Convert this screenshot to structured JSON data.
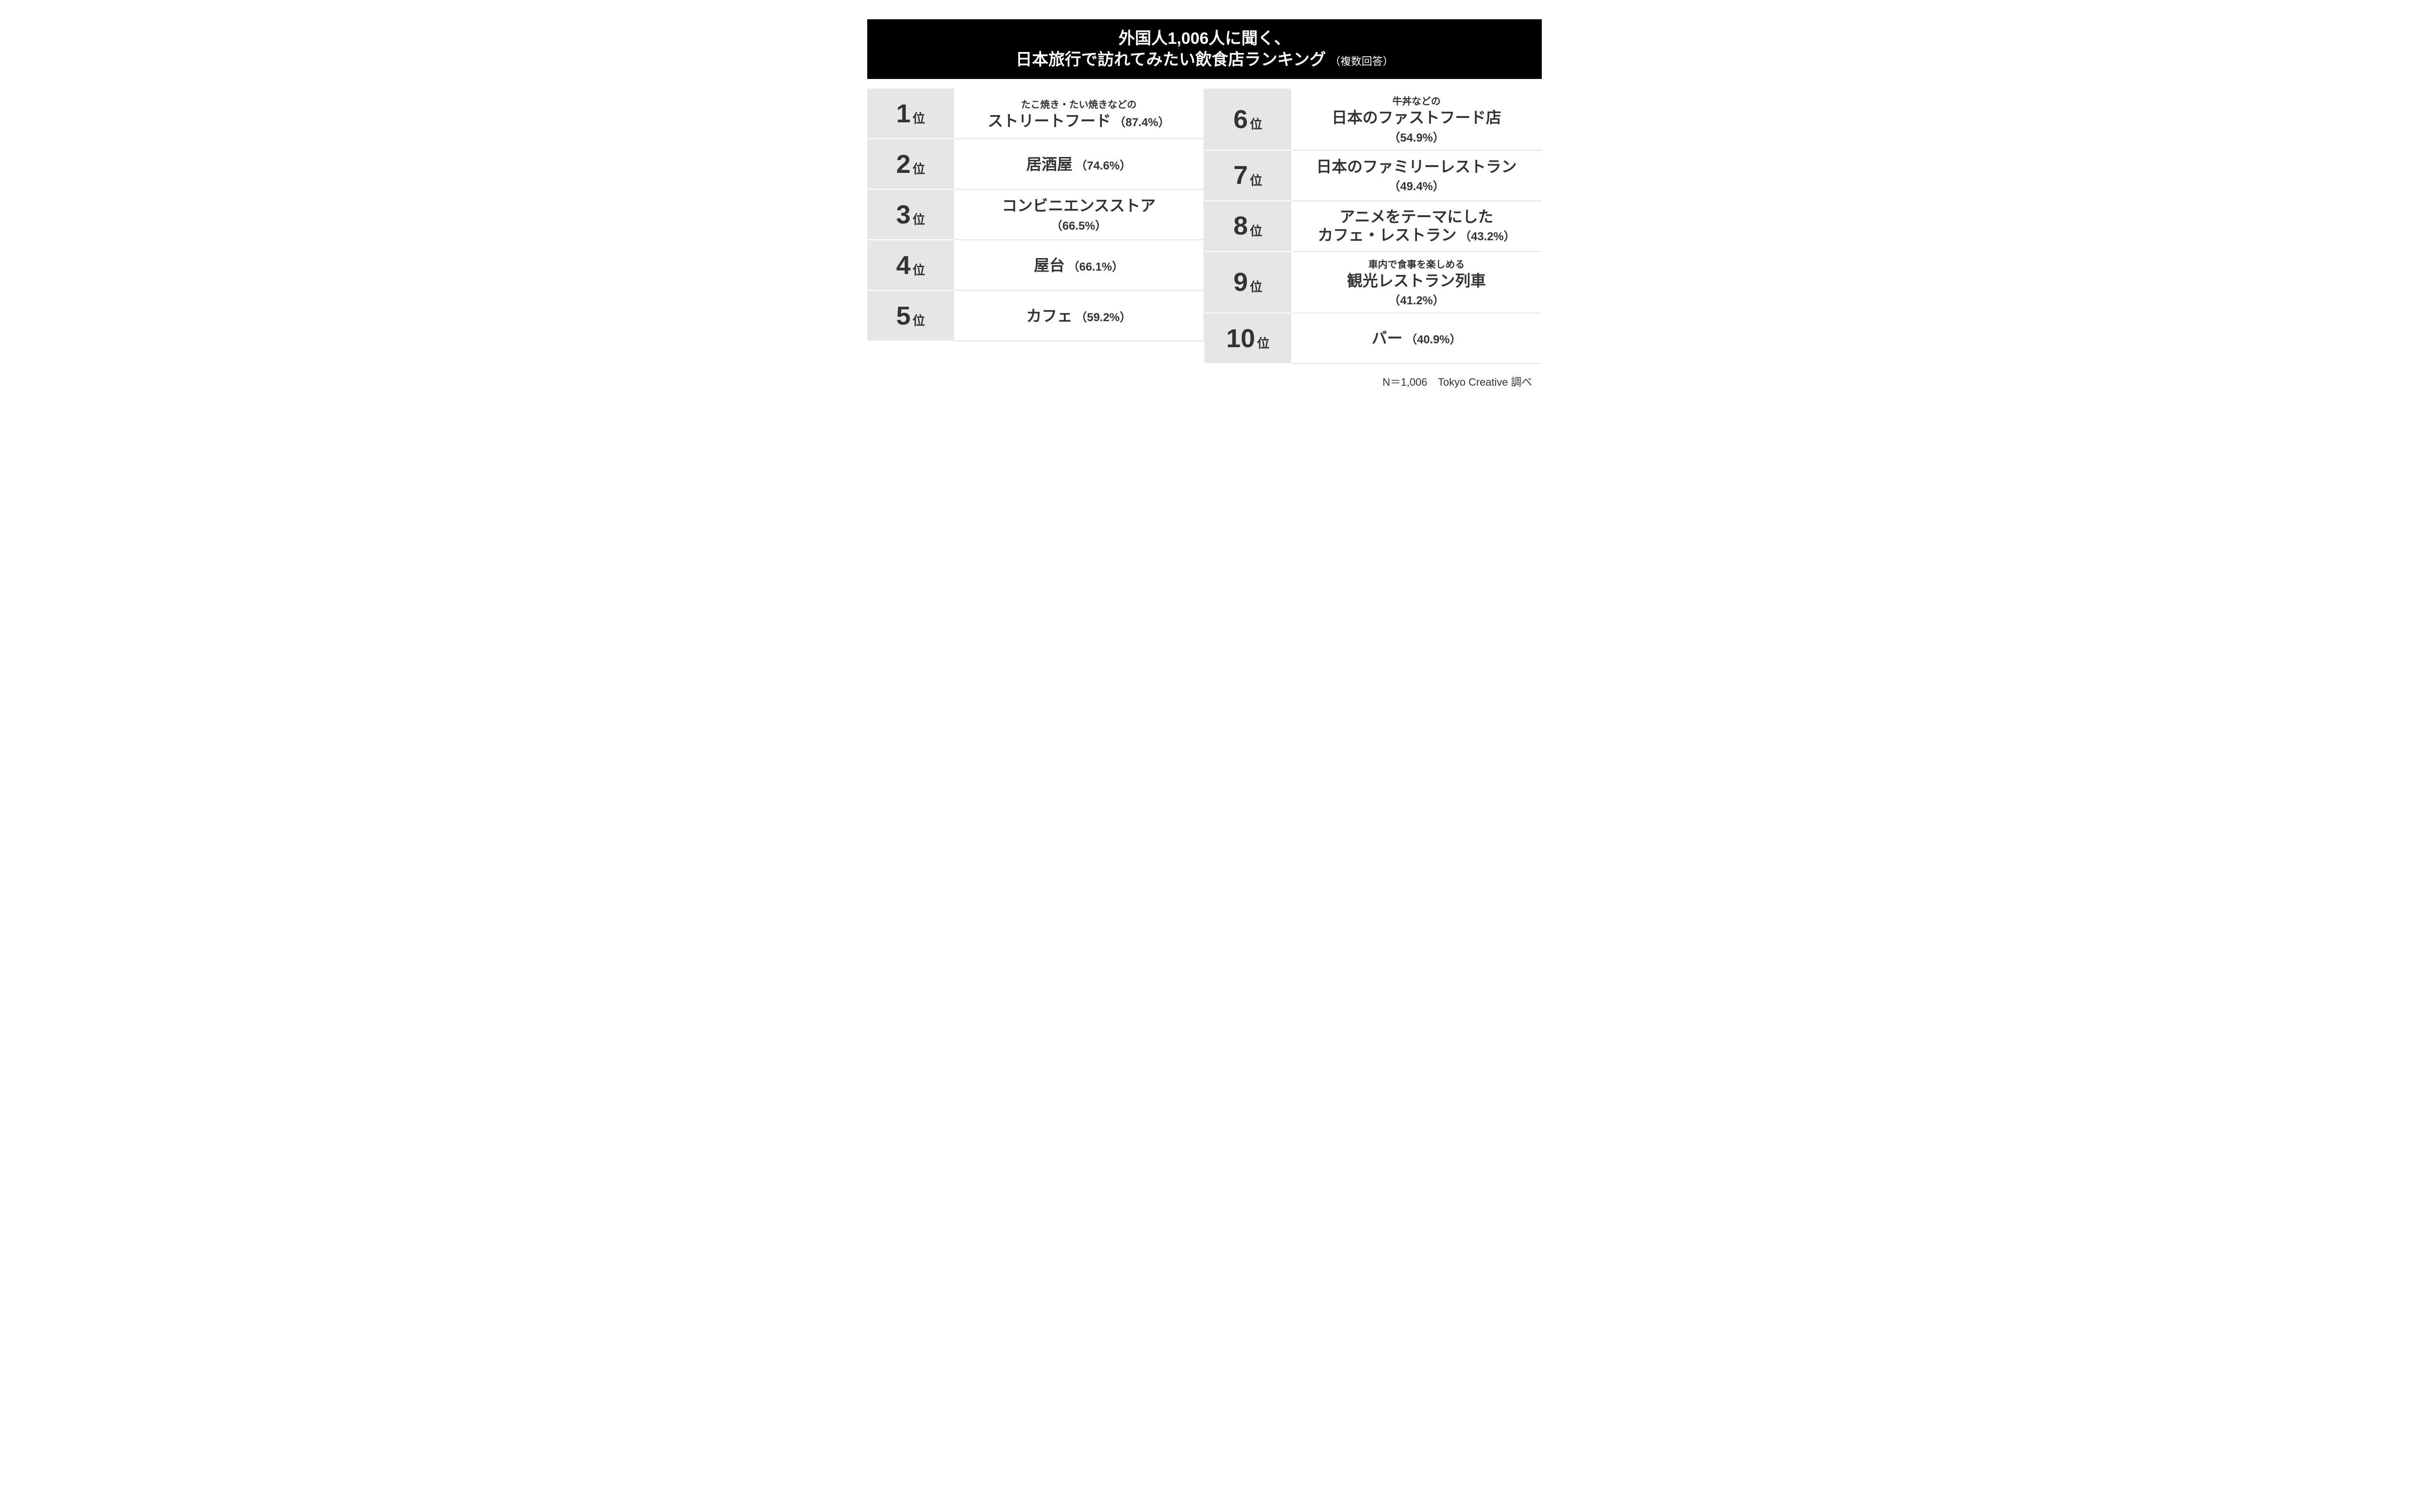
{
  "header": {
    "line1": "外国人1,006人に聞く、",
    "line2": "日本旅行で訪れてみたい飲食店ランキング",
    "note": "（複数回答）"
  },
  "rank_suffix": "位",
  "rankings": [
    {
      "rank": "1",
      "subtitle": "たこ焼き・たい焼きなどの",
      "title": "ストリートフード",
      "percentage": "（87.4%）",
      "layout": "inline"
    },
    {
      "rank": "2",
      "subtitle": "",
      "title": "居酒屋",
      "percentage": "（74.6%）",
      "layout": "inline"
    },
    {
      "rank": "3",
      "subtitle": "",
      "title": "コンビニエンスストア",
      "percentage": "（66.5%）",
      "layout": "below"
    },
    {
      "rank": "4",
      "subtitle": "",
      "title": "屋台",
      "percentage": "（66.1%）",
      "layout": "inline"
    },
    {
      "rank": "5",
      "subtitle": "",
      "title": "カフェ",
      "percentage": "（59.2%）",
      "layout": "inline"
    },
    {
      "rank": "6",
      "subtitle": "牛丼などの",
      "title": "日本のファストフード店",
      "percentage": "（54.9%）",
      "layout": "below"
    },
    {
      "rank": "7",
      "subtitle": "",
      "title": "日本のファミリーレストラン",
      "percentage": "（49.4%）",
      "layout": "below"
    },
    {
      "rank": "8",
      "subtitle": "",
      "title": "アニメをテーマにした",
      "title2": "カフェ・レストラン",
      "percentage": "（43.2%）",
      "layout": "twoline"
    },
    {
      "rank": "9",
      "subtitle": "車内で食事を楽しめる",
      "title": "観光レストラン列車",
      "percentage": "（41.2%）",
      "layout": "below"
    },
    {
      "rank": "10",
      "subtitle": "",
      "title": "バー",
      "percentage": "（40.9%）",
      "layout": "inline"
    }
  ],
  "footer": "N＝1,006　Tokyo Creative 調べ",
  "colors": {
    "header_bg": "#000000",
    "header_text": "#ffffff",
    "rank_bg": "#e6e6e6",
    "text": "#333333",
    "border": "#e6e6e6",
    "background": "#ffffff"
  }
}
